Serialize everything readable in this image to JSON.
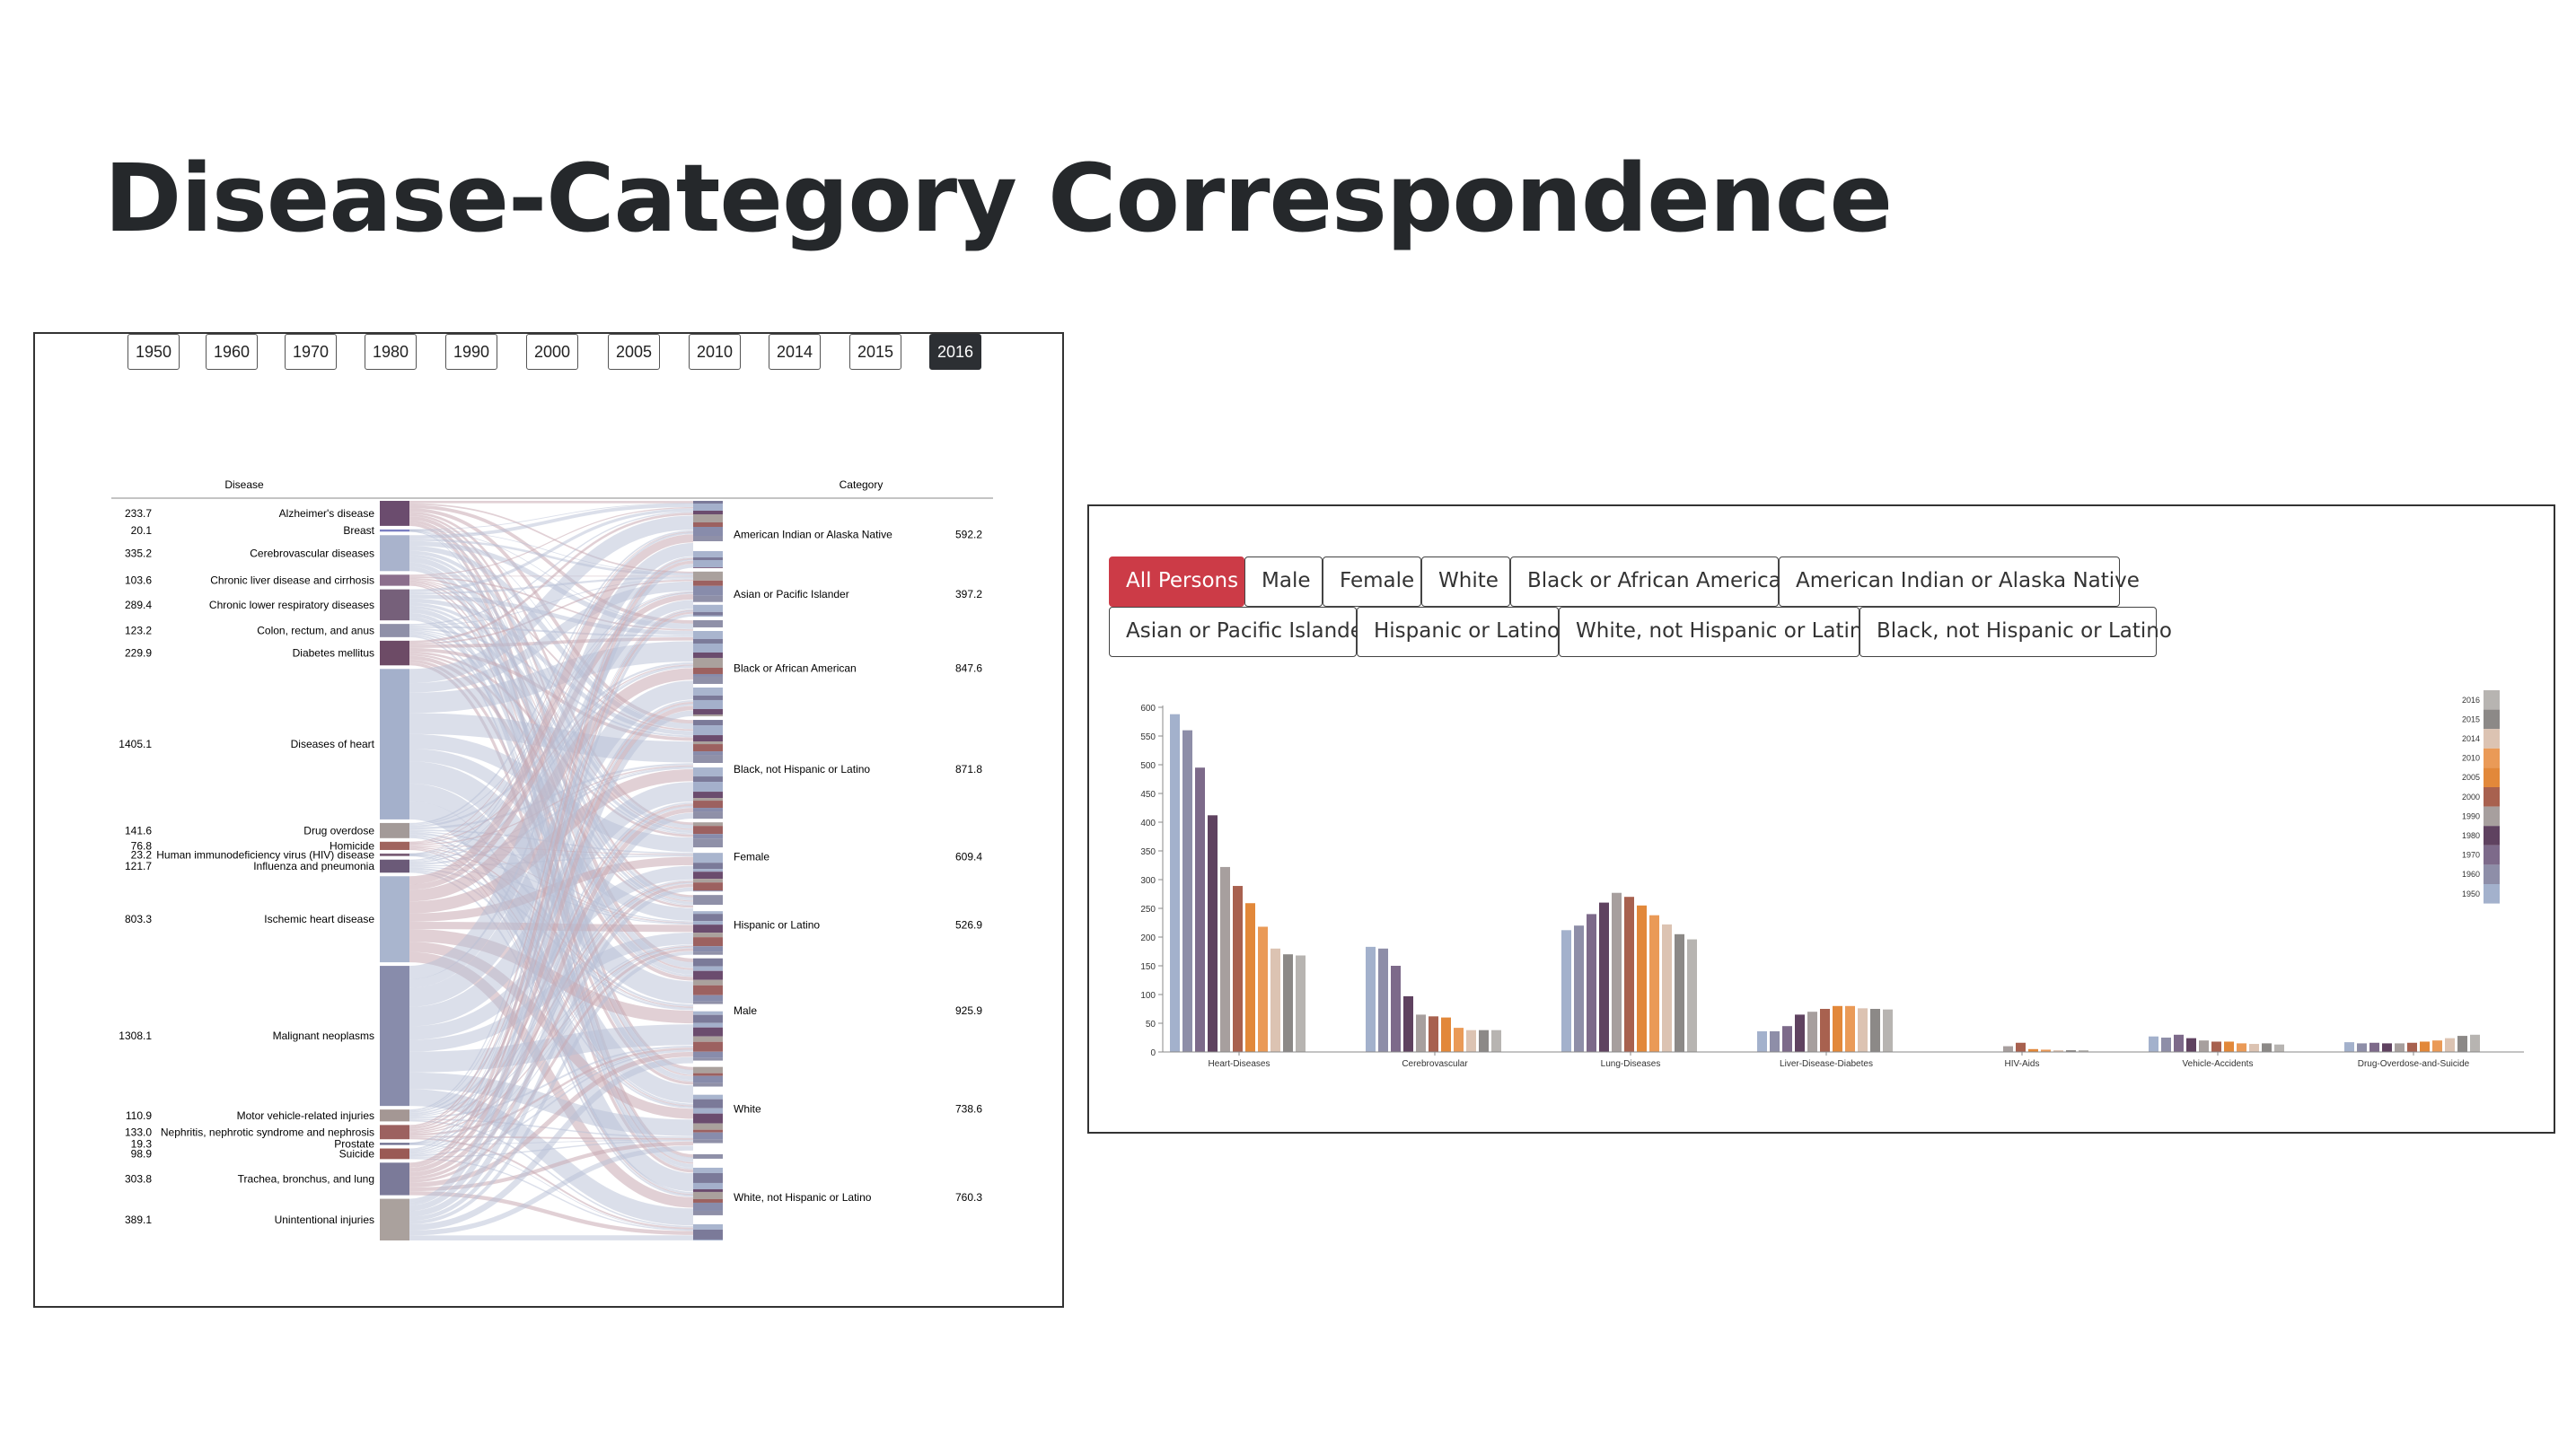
{
  "slide": {
    "title": "Disease-Category Correspondence"
  },
  "sankey": {
    "years": [
      "1950",
      "1960",
      "1970",
      "1980",
      "1990",
      "2000",
      "2005",
      "2010",
      "2014",
      "2015",
      "2016"
    ],
    "selected_year": "2016",
    "left_header": "Disease",
    "right_header": "Category",
    "diseases": [
      {
        "name": "Alzheimer's disease",
        "value": "233.7",
        "color": "#6b4c6e"
      },
      {
        "name": "Breast",
        "value": "20.1",
        "color": "#7b7fc2"
      },
      {
        "name": "Cerebrovascular diseases",
        "value": "335.2",
        "color": "#a9b3cc"
      },
      {
        "name": "Chronic liver disease and cirrhosis",
        "value": "103.6",
        "color": "#8c6f8c"
      },
      {
        "name": "Chronic lower respiratory diseases",
        "value": "289.4",
        "color": "#76607a"
      },
      {
        "name": "Colon, rectum, and anus",
        "value": "123.2",
        "color": "#8f90a8"
      },
      {
        "name": "Diabetes mellitus",
        "value": "229.9",
        "color": "#6d4b66"
      },
      {
        "name": "Diseases of heart",
        "value": "1405.1",
        "color": "#a4b0cb"
      },
      {
        "name": "Drug overdose",
        "value": "141.6",
        "color": "#a39a98"
      },
      {
        "name": "Homicide",
        "value": "76.8",
        "color": "#a0645e"
      },
      {
        "name": "Human immunodeficiency virus (HIV) disease",
        "value": "23.2",
        "color": "#7a5e76"
      },
      {
        "name": "Influenza and pneumonia",
        "value": "121.7",
        "color": "#6b5a78"
      },
      {
        "name": "Ischemic heart disease",
        "value": "803.3",
        "color": "#a9b5ce"
      },
      {
        "name": "Malignant neoplasms",
        "value": "1308.1",
        "color": "#888cab"
      },
      {
        "name": "Motor vehicle-related injuries",
        "value": "110.9",
        "color": "#a49794"
      },
      {
        "name": "Nephritis, nephrotic syndrome and nephrosis",
        "value": "133.0",
        "color": "#9c6160"
      },
      {
        "name": "Prostate",
        "value": "19.3",
        "color": "#6c6d8e"
      },
      {
        "name": "Suicide",
        "value": "98.9",
        "color": "#9a5a55"
      },
      {
        "name": "Trachea, bronchus, and lung",
        "value": "303.8",
        "color": "#7b7a99"
      },
      {
        "name": "Unintentional injuries",
        "value": "389.1",
        "color": "#aaa19d"
      }
    ],
    "categories": [
      {
        "name": "American Indian or Alaska Native",
        "value": "592.2"
      },
      {
        "name": "Asian or Pacific Islander",
        "value": "397.2"
      },
      {
        "name": "Black or African American",
        "value": "847.6"
      },
      {
        "name": "Black, not Hispanic or Latino",
        "value": "871.8"
      },
      {
        "name": "Female",
        "value": "609.4"
      },
      {
        "name": "Hispanic or Latino",
        "value": "526.9"
      },
      {
        "name": "Male",
        "value": "925.9"
      },
      {
        "name": "White",
        "value": "738.6"
      },
      {
        "name": "White, not Hispanic or Latino",
        "value": "760.3"
      }
    ]
  },
  "category_filter": {
    "buttons": [
      "All Persons",
      "Male",
      "Female",
      "White",
      "Black or African American",
      "American Indian or Alaska Native",
      "Asian or Pacific Islander",
      "Hispanic or Latino",
      "White, not Hispanic or Latino",
      "Black, not Hispanic or Latino"
    ],
    "active": "All Persons"
  },
  "chart_data": {
    "type": "bar",
    "categories": [
      "Heart-Diseases",
      "Cerebrovascular",
      "Lung-Diseases",
      "Liver-Disease-Diabetes",
      "HIV-Aids",
      "Vehicle-Accidents",
      "Drug-Overdose-and-Suicide"
    ],
    "ylim": [
      0,
      600
    ],
    "yticks": [
      "0",
      "50",
      "100",
      "150",
      "200",
      "250",
      "300",
      "350",
      "400",
      "450",
      "500",
      "550",
      "600"
    ],
    "legend_position": "right",
    "series": [
      {
        "name": "1950",
        "color": "#a3b1cc",
        "values": [
          588,
          183,
          212,
          36,
          0,
          27,
          17
        ]
      },
      {
        "name": "1960",
        "color": "#8e8ea8",
        "values": [
          560,
          180,
          220,
          36,
          0,
          25,
          15
        ]
      },
      {
        "name": "1970",
        "color": "#7d6a8a",
        "values": [
          495,
          150,
          240,
          45,
          0,
          30,
          16
        ]
      },
      {
        "name": "1980",
        "color": "#5f4260",
        "values": [
          412,
          97,
          260,
          65,
          0,
          24,
          15
        ]
      },
      {
        "name": "1990",
        "color": "#a79f9e",
        "values": [
          322,
          65,
          277,
          70,
          10,
          20,
          15
        ]
      },
      {
        "name": "2000",
        "color": "#a8614f",
        "values": [
          289,
          62,
          270,
          75,
          16,
          18,
          16
        ]
      },
      {
        "name": "2005",
        "color": "#e2883a",
        "values": [
          259,
          60,
          255,
          80,
          5,
          18,
          18
        ]
      },
      {
        "name": "2010",
        "color": "#ea9a57",
        "values": [
          218,
          42,
          238,
          80,
          4,
          15,
          20
        ]
      },
      {
        "name": "2014",
        "color": "#dcc3b2",
        "values": [
          180,
          38,
          222,
          76,
          3,
          14,
          24
        ]
      },
      {
        "name": "2015",
        "color": "#8c8987",
        "values": [
          170,
          38,
          205,
          75,
          3,
          15,
          28
        ]
      },
      {
        "name": "2016",
        "color": "#b7b4b1",
        "values": [
          168,
          38,
          196,
          74,
          3,
          13,
          30
        ]
      }
    ]
  }
}
